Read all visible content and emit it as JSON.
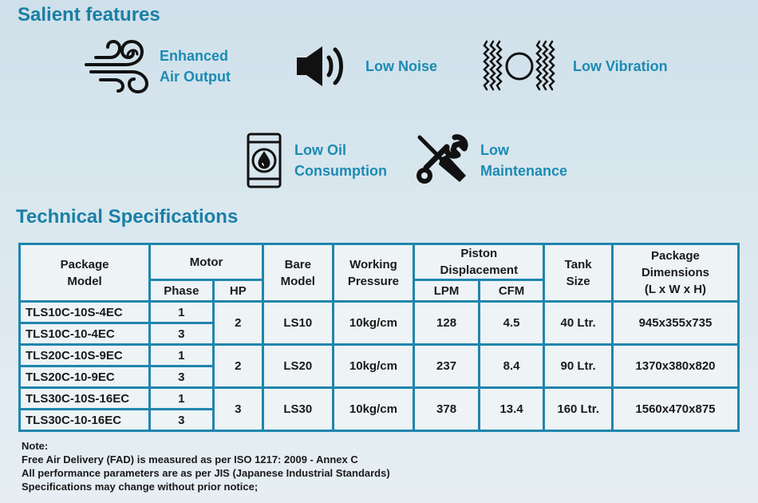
{
  "salient": {
    "title": "Salient features",
    "features": [
      {
        "label": "Enhanced\nAir Output",
        "icon": "wind-icon"
      },
      {
        "label": "Low Noise",
        "icon": "speaker-icon"
      },
      {
        "label": "Low Vibration",
        "icon": "vibration-icon"
      },
      {
        "label": "Low Oil\nConsumption",
        "icon": "oil-barrel-icon"
      },
      {
        "label": "Low\nMaintenance",
        "icon": "wrench-screwdriver-icon"
      }
    ]
  },
  "specs": {
    "title": "Technical Specifications",
    "headers": {
      "package_model": "Package\nModel",
      "motor": "Motor",
      "phase": "Phase",
      "hp": "HP",
      "bare_model": "Bare\nModel",
      "working_pressure": "Working\nPressure",
      "piston_displacement": "Piston\nDisplacement",
      "lpm": "LPM",
      "cfm": "CFM",
      "tank_size": "Tank\nSize",
      "package_dimensions": "Package\nDimensions\n(L x W x H)"
    },
    "groups": [
      {
        "hp": "2",
        "bare_model": "LS10",
        "pressure": "10kg/cm",
        "lpm": "128",
        "cfm": "4.5",
        "tank": "40 Ltr.",
        "dimensions": "945x355x735",
        "rows": [
          {
            "model": "TLS10C-10S-4EC",
            "phase": "1"
          },
          {
            "model": "TLS10C-10-4EC",
            "phase": "3"
          }
        ]
      },
      {
        "hp": "2",
        "bare_model": "LS20",
        "pressure": "10kg/cm",
        "lpm": "237",
        "cfm": "8.4",
        "tank": "90 Ltr.",
        "dimensions": "1370x380x820",
        "rows": [
          {
            "model": "TLS20C-10S-9EC",
            "phase": "1"
          },
          {
            "model": "TLS20C-10-9EC",
            "phase": "3"
          }
        ]
      },
      {
        "hp": "3",
        "bare_model": "LS30",
        "pressure": "10kg/cm",
        "lpm": "378",
        "cfm": "13.4",
        "tank": "160 Ltr.",
        "dimensions": "1560x470x875",
        "rows": [
          {
            "model": "TLS30C-10S-16EC",
            "phase": "1"
          },
          {
            "model": "TLS30C-10-16EC",
            "phase": "3"
          }
        ]
      }
    ]
  },
  "notes": [
    "Note:",
    "Free Air Delivery (FAD) is measured as per ISO 1217: 2009 - Annex C",
    "All performance parameters are as per JIS (Japanese Industrial Standards)",
    "Specifications may change without prior notice;"
  ],
  "colors": {
    "accent": "#1b7fa6",
    "feature_text": "#1b8bb3",
    "table_border": "#1f86ad",
    "cell_bg": "#eef3f6"
  }
}
